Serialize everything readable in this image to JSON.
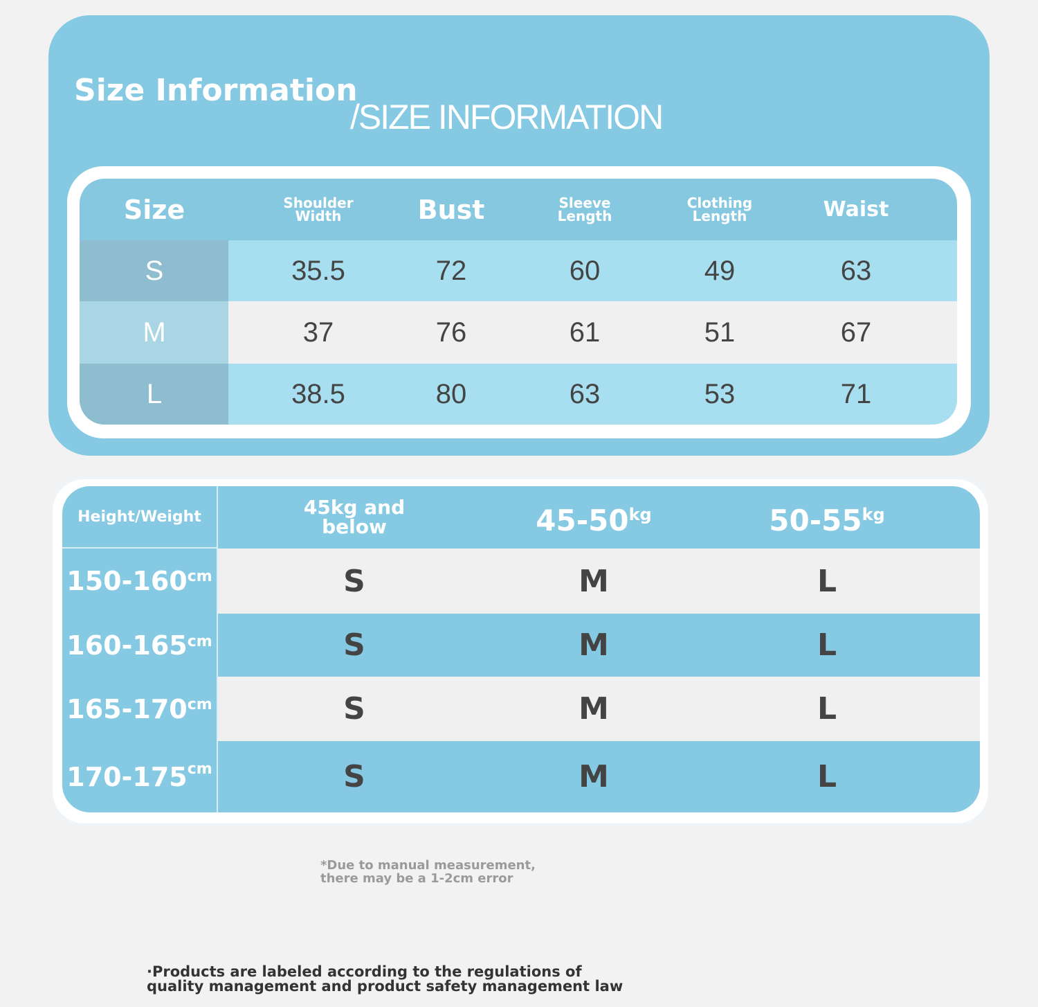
{
  "header": {
    "title": "Size Information",
    "subtitle": "/SIZE INFORMATION"
  },
  "size_table": {
    "columns": [
      [
        "Size"
      ],
      [
        "Shoulder",
        "Width"
      ],
      [
        "Bust"
      ],
      [
        "Sleeve",
        "Length"
      ],
      [
        "Clothing",
        "Length"
      ],
      [
        "Waist"
      ]
    ],
    "rows": [
      [
        "S",
        "35.5",
        "72",
        "60",
        "49",
        "63"
      ],
      [
        "M",
        "37",
        "76",
        "61",
        "51",
        "67"
      ],
      [
        "L",
        "38.5",
        "80",
        "63",
        "53",
        "71"
      ]
    ]
  },
  "fit_table": {
    "corner": "Height/Weight",
    "columns": [
      {
        "label": [
          "45kg and",
          "below"
        ]
      },
      {
        "label": [
          "45-50"
        ],
        "unit": "kg"
      },
      {
        "label": [
          "50-55"
        ],
        "unit": "kg"
      }
    ],
    "rows": [
      {
        "height": "150-160",
        "unit": "cm",
        "sizes": [
          "S",
          "M",
          "L"
        ]
      },
      {
        "height": "160-165",
        "unit": "cm",
        "sizes": [
          "S",
          "M",
          "L"
        ]
      },
      {
        "height": "165-170",
        "unit": "cm",
        "sizes": [
          "S",
          "M",
          "L"
        ]
      },
      {
        "height": "170-175",
        "unit": "cm",
        "sizes": [
          "S",
          "M",
          "L"
        ]
      }
    ]
  },
  "notes": {
    "measurement": [
      "*Due to manual measurement,",
      "there may be a 1-2cm error"
    ],
    "regulation": [
      "·Products are labeled according to the regulations of",
      "quality management and product safety management law"
    ]
  }
}
